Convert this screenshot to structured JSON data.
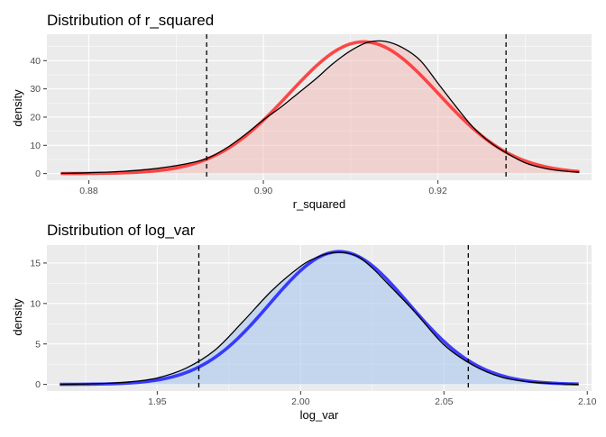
{
  "chart_data": [
    {
      "type": "area",
      "title": "Distribution of r_squared",
      "xlabel": "r_squared",
      "ylabel": "density",
      "xlim": [
        0.8752,
        0.9376
      ],
      "ylim": [
        -2.35,
        49.35
      ],
      "x_ticks": [
        0.88,
        0.9,
        0.92
      ],
      "x_tick_labels": [
        "0.88",
        "0.90",
        "0.92"
      ],
      "y_ticks": [
        0,
        10,
        20,
        30,
        40
      ],
      "y_tick_labels": [
        "0",
        "10",
        "20",
        "30",
        "40"
      ],
      "colors": {
        "fill": "#f4b4b0",
        "fill_opacity": 0.45,
        "curve": "#ff2a2a"
      },
      "quantile_lines": [
        0.8935,
        0.9278
      ],
      "normal_fit": {
        "mean": 0.9115,
        "sd": 0.00855
      },
      "empirical_density": {
        "x": [
          0.8768,
          0.88,
          0.884,
          0.888,
          0.892,
          0.894,
          0.896,
          0.898,
          0.9,
          0.902,
          0.904,
          0.906,
          0.908,
          0.91,
          0.912,
          0.914,
          0.916,
          0.918,
          0.92,
          0.922,
          0.924,
          0.926,
          0.928,
          0.93,
          0.932,
          0.934,
          0.9362
        ],
        "y": [
          0.1,
          0.3,
          0.8,
          1.9,
          4.0,
          6.0,
          9.5,
          14.0,
          19.0,
          23.5,
          28.5,
          33.5,
          39.0,
          43.5,
          46.5,
          46.8,
          44.5,
          40.0,
          32.0,
          24.0,
          16.5,
          11.0,
          7.0,
          3.8,
          2.0,
          1.0,
          0.5
        ]
      }
    },
    {
      "type": "area",
      "title": "Distribution of log_var",
      "xlabel": "log_var",
      "ylabel": "density",
      "xlim": [
        1.9115,
        2.1015
      ],
      "ylim": [
        -0.82,
        17.22
      ],
      "x_ticks": [
        1.95,
        2.0,
        2.05,
        2.1
      ],
      "x_tick_labels": [
        "1.95",
        "2.00",
        "2.05",
        "2.10"
      ],
      "y_ticks": [
        0,
        5,
        10,
        15
      ],
      "y_tick_labels": [
        "0",
        "5",
        "10",
        "15"
      ],
      "colors": {
        "fill": "#a8c8ee",
        "fill_opacity": 0.6,
        "curve": "#1f1fff"
      },
      "quantile_lines": [
        1.9645,
        2.0585
      ],
      "normal_fit": {
        "mean": 2.0135,
        "sd": 0.0243
      },
      "empirical_density": {
        "x": [
          1.916,
          1.93,
          1.94,
          1.95,
          1.96,
          1.97,
          1.98,
          1.99,
          2.0,
          2.005,
          2.01,
          2.015,
          2.02,
          2.025,
          2.03,
          2.04,
          2.05,
          2.06,
          2.07,
          2.08,
          2.09,
          2.097
        ],
        "y": [
          0.0,
          0.1,
          0.3,
          0.8,
          2.0,
          4.2,
          7.8,
          11.6,
          14.6,
          15.6,
          16.2,
          16.3,
          15.8,
          14.4,
          12.6,
          8.9,
          4.9,
          2.4,
          0.9,
          0.3,
          0.1,
          0.0
        ]
      }
    }
  ]
}
